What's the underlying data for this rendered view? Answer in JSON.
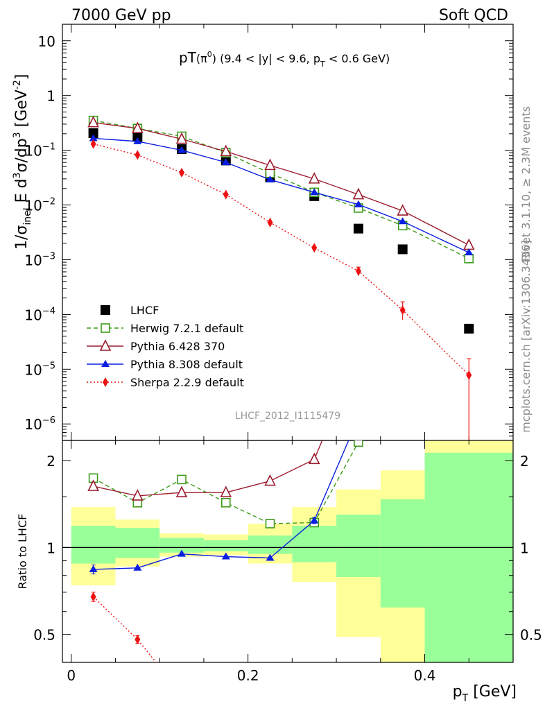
{
  "header": {
    "energy_label": "7000 GeV pp",
    "category_label": "Soft QCD"
  },
  "side_text": {
    "rivet": "Rivet 3.1.10, ≥ 2.3M events",
    "mcplots": "mcplots.cern.ch [arXiv:1306.3436]"
  },
  "chart_data": [
    {
      "type": "scatter",
      "title_main": "pT",
      "title_particle": "(π",
      "title_sup": "0",
      "title_cut1": ") (9.4 < |y| < 9.6, p",
      "title_sub": "T",
      "title_cut2": " < 0.6 GeV)",
      "ylabel": "1/σinel E d³σ/dp³ [GeV⁻²]",
      "yscale": "log",
      "ylim": [
        5e-07,
        20
      ],
      "xlim": [
        -0.01,
        0.5
      ],
      "ytick_labels": [
        "10",
        "1",
        "10⁻¹",
        "10⁻²",
        "10⁻³",
        "10⁻⁴",
        "10⁻⁵",
        "10⁻⁶"
      ],
      "watermark": "LHCF_2012_I1115479",
      "legend_position": "bottom-left",
      "series": [
        {
          "name": "LHCF",
          "color": "#000000",
          "marker": "square-filled",
          "line": "none",
          "x": [
            0.025,
            0.075,
            0.125,
            0.175,
            0.225,
            0.275,
            0.325,
            0.375,
            0.45
          ],
          "y": [
            0.205,
            0.175,
            0.105,
            0.065,
            0.032,
            0.0145,
            0.0037,
            0.00155,
            5.5e-05
          ]
        },
        {
          "name": "Herwig 7.2.1 default",
          "color": "#3a9a16",
          "marker": "square-open",
          "line": "dashed",
          "x": [
            0.025,
            0.075,
            0.125,
            0.175,
            0.225,
            0.275,
            0.325,
            0.375,
            0.45
          ],
          "y": [
            0.35,
            0.25,
            0.18,
            0.09,
            0.038,
            0.017,
            0.0088,
            0.0042,
            0.00105
          ]
        },
        {
          "name": "Pythia 6.428 370",
          "color": "#9b1c2e",
          "marker": "triangle-open",
          "line": "solid",
          "x": [
            0.025,
            0.075,
            0.125,
            0.175,
            0.225,
            0.275,
            0.325,
            0.375,
            0.45
          ],
          "y": [
            0.32,
            0.25,
            0.16,
            0.095,
            0.053,
            0.03,
            0.0155,
            0.0078,
            0.00185
          ]
        },
        {
          "name": "Pythia 8.308 default",
          "color": "#0a1fe0",
          "marker": "triangle-filled",
          "line": "solid",
          "x": [
            0.025,
            0.075,
            0.125,
            0.175,
            0.225,
            0.275,
            0.325,
            0.375,
            0.45
          ],
          "y": [
            0.165,
            0.145,
            0.1,
            0.06,
            0.029,
            0.017,
            0.0102,
            0.005,
            0.00135
          ]
        },
        {
          "name": "Sherpa 2.2.9 default",
          "color": "#ee1111",
          "marker": "diamond-filled",
          "line": "dotted",
          "x": [
            0.025,
            0.075,
            0.125,
            0.175,
            0.225,
            0.275,
            0.325,
            0.375,
            0.45
          ],
          "y": [
            0.13,
            0.082,
            0.039,
            0.0155,
            0.0048,
            0.00165,
            0.00062,
            0.00012,
            7.8e-06
          ],
          "yerr_low": [
            0,
            0,
            0,
            0,
            0,
            0,
            0.00011,
            4e-05,
            7.5e-06
          ],
          "yerr_high": [
            0,
            0,
            0,
            0,
            0,
            0,
            0.00011,
            5e-05,
            7.7e-06
          ]
        }
      ]
    },
    {
      "type": "line",
      "ylabel": "Ratio to LHCF",
      "xlabel_main": "p",
      "xlabel_sub": "T",
      "xlabel_unit": " [GeV]",
      "yscale": "log",
      "ylim": [
        0.4,
        2.35
      ],
      "xlim": [
        -0.01,
        0.5
      ],
      "x_ticks": [
        0,
        0.2,
        0.4
      ],
      "x_tick_labels": [
        "0",
        "0.2",
        "0.4"
      ],
      "y_tick_labels": [
        "2",
        "1",
        "0.5"
      ],
      "y_tick_values": [
        2,
        1,
        0.5
      ],
      "bands": [
        {
          "x0": 0.0,
          "x1": 0.05,
          "yellow": [
            0.74,
            1.38
          ],
          "green": [
            0.88,
            1.19
          ]
        },
        {
          "x0": 0.05,
          "x1": 0.1,
          "yellow": [
            0.86,
            1.25
          ],
          "green": [
            0.92,
            1.17
          ]
        },
        {
          "x0": 0.1,
          "x1": 0.15,
          "yellow": [
            0.93,
            1.12
          ],
          "green": [
            0.96,
            1.08
          ]
        },
        {
          "x0": 0.15,
          "x1": 0.2,
          "yellow": [
            0.94,
            1.11
          ],
          "green": [
            0.97,
            1.06
          ]
        },
        {
          "x0": 0.2,
          "x1": 0.25,
          "yellow": [
            0.88,
            1.21
          ],
          "green": [
            0.95,
            1.1
          ]
        },
        {
          "x0": 0.25,
          "x1": 0.3,
          "yellow": [
            0.76,
            1.38
          ],
          "green": [
            0.89,
            1.19
          ]
        },
        {
          "x0": 0.3,
          "x1": 0.35,
          "yellow": [
            0.49,
            1.59
          ],
          "green": [
            0.79,
            1.3
          ]
        },
        {
          "x0": 0.35,
          "x1": 0.4,
          "yellow": [
            0.4,
            1.85
          ],
          "green": [
            0.62,
            1.47
          ]
        },
        {
          "x0": 0.4,
          "x1": 0.5,
          "yellow": [
            0.4,
            2.35
          ],
          "green": [
            0.4,
            2.13
          ]
        }
      ],
      "series": [
        {
          "name": "Herwig 7.2.1 default",
          "color": "#3a9a16",
          "marker": "square-open",
          "line": "dashed",
          "x": [
            0.025,
            0.075,
            0.125,
            0.175,
            0.225,
            0.275,
            0.325
          ],
          "y": [
            1.74,
            1.43,
            1.72,
            1.43,
            1.21,
            1.22,
            2.32
          ],
          "yerr": [
            0.05,
            0.0,
            0.0,
            0.0,
            0.0,
            0.0,
            0.0
          ]
        },
        {
          "name": "Pythia 6.428 370",
          "color": "#9b1c2e",
          "marker": "triangle-open",
          "line": "solid",
          "x": [
            0.025,
            0.075,
            0.125,
            0.175,
            0.225,
            0.275,
            0.29
          ],
          "y": [
            1.63,
            1.51,
            1.55,
            1.55,
            1.7,
            2.02,
            2.6
          ],
          "yerr": [
            0.05,
            0,
            0,
            0,
            0,
            0,
            0
          ],
          "markers": [
            1,
            1,
            1,
            1,
            1,
            1,
            0
          ]
        },
        {
          "name": "Pythia 8.308 default",
          "color": "#0a1fe0",
          "marker": "triangle-filled",
          "line": "solid",
          "x": [
            0.025,
            0.075,
            0.125,
            0.175,
            0.225,
            0.275,
            0.32
          ],
          "y": [
            0.84,
            0.85,
            0.95,
            0.93,
            0.92,
            1.24,
            2.6
          ],
          "yerr": [
            0.03,
            0,
            0,
            0,
            0,
            0.03,
            0
          ],
          "markers": [
            1,
            1,
            1,
            1,
            1,
            1,
            0
          ]
        },
        {
          "name": "Sherpa 2.2.9 default",
          "color": "#ee1111",
          "marker": "diamond-filled",
          "line": "dotted",
          "x": [
            0.025,
            0.075,
            0.105
          ],
          "y": [
            0.675,
            0.48,
            0.37
          ],
          "yerr": [
            0.025,
            0.015,
            0
          ],
          "markers": [
            1,
            1,
            0
          ]
        }
      ]
    }
  ]
}
